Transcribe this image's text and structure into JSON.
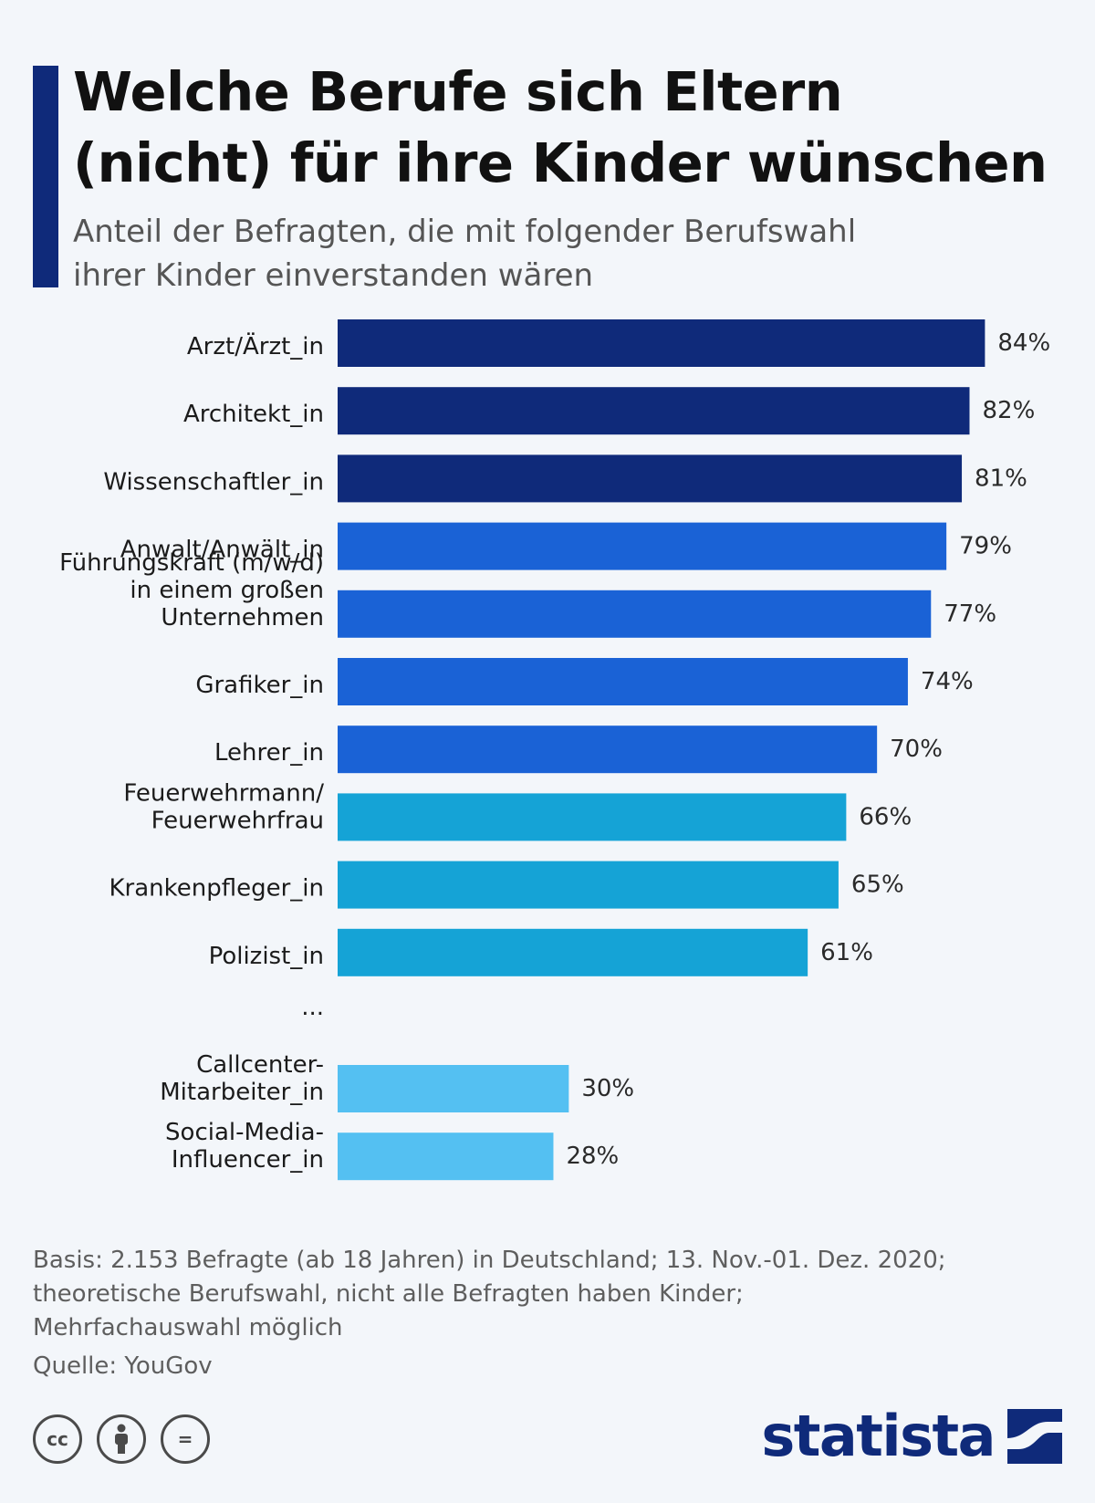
{
  "header": {
    "title_line1": "Welche Berufe sich Eltern",
    "title_line2": "(nicht) für ihre Kinder wünschen",
    "subtitle_line1": "Anteil der Befragten, die mit folgender Berufswahl",
    "subtitle_line2": "ihrer Kinder einverstanden wären"
  },
  "chart_data": {
    "type": "bar",
    "orientation": "horizontal",
    "title": "Welche Berufe sich Eltern (nicht) für ihre Kinder wünschen",
    "subtitle": "Anteil der Befragten, die mit folgender Berufswahl ihrer Kinder einverstanden wären",
    "unit": "%",
    "xlim": [
      0,
      100
    ],
    "grid": false,
    "ellipsis_label": "...",
    "categories": [
      [
        "Arzt/Ärzt_in"
      ],
      [
        "Architekt_in"
      ],
      [
        "Wissenschaftler_in"
      ],
      [
        "Anwalt/Anwält_in"
      ],
      [
        "Führungskraft (m/w/d)",
        "in einem großen",
        "Unternehmen"
      ],
      [
        "Grafiker_in"
      ],
      [
        "Lehrer_in"
      ],
      [
        "Feuerwehrmann/",
        "Feuerwehrfrau"
      ],
      [
        "Krankenpfleger_in"
      ],
      [
        "Polizist_in"
      ],
      [
        "Callcenter-",
        "Mitarbeiter_in"
      ],
      [
        "Social-Media-",
        "Influencer_in"
      ]
    ],
    "values": [
      84,
      82,
      81,
      79,
      77,
      74,
      70,
      66,
      65,
      61,
      30,
      28
    ],
    "value_labels": [
      "84%",
      "82%",
      "81%",
      "79%",
      "77%",
      "74%",
      "70%",
      "66%",
      "65%",
      "61%",
      "30%",
      "28%"
    ],
    "bar_colors": [
      "#0f2a7a",
      "#0f2a7a",
      "#0f2a7a",
      "#1a62d6",
      "#1a62d6",
      "#1a62d6",
      "#1a62d6",
      "#15a3d6",
      "#15a3d6",
      "#15a3d6",
      "#54c0f2",
      "#54c0f2"
    ]
  },
  "footer": {
    "basis_line1": "Basis: 2.153 Befragte (ab 18 Jahren) in Deutschland; 13. Nov.-01. Dez. 2020;",
    "basis_line2": "theoretische Berufswahl, nicht alle Befragten haben Kinder;",
    "basis_line3": "Mehrfachauswahl möglich",
    "source": "Quelle: YouGov"
  },
  "license": {
    "cc": "cc",
    "equals": "="
  },
  "logo": {
    "text": "statista"
  },
  "colors": {
    "accent": "#0f2a7a",
    "background": "#f3f6fa"
  }
}
